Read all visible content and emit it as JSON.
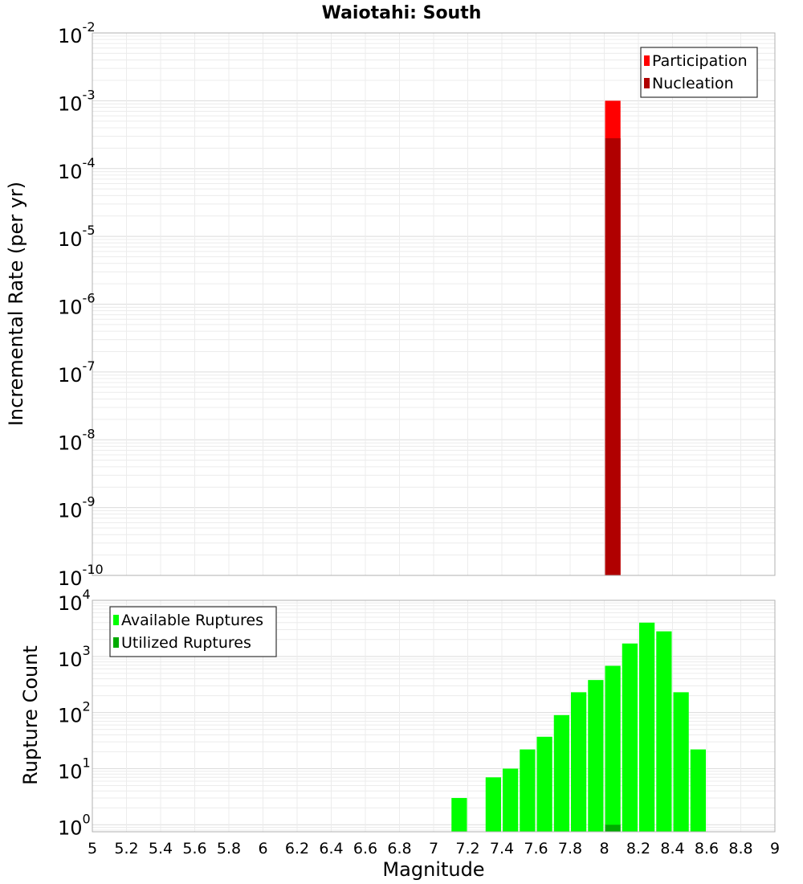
{
  "chart_data": [
    {
      "type": "bar",
      "title": "Waiotahi: South",
      "xlabel": "",
      "ylabel": "Incremental Rate (per yr)",
      "yscale": "log",
      "ylim": [
        1e-10,
        0.01
      ],
      "xlim": [
        5,
        9
      ],
      "bin_width": 0.1,
      "grid": true,
      "legend_placement": "top-right",
      "ytick_labels": [
        {
          "base": "10",
          "exp": "-10"
        },
        {
          "base": "10",
          "exp": "-9"
        },
        {
          "base": "10",
          "exp": "-8"
        },
        {
          "base": "10",
          "exp": "-7"
        },
        {
          "base": "10",
          "exp": "-6"
        },
        {
          "base": "10",
          "exp": "-5"
        },
        {
          "base": "10",
          "exp": "-4"
        },
        {
          "base": "10",
          "exp": "-3"
        },
        {
          "base": "10",
          "exp": "-2"
        }
      ],
      "series": [
        {
          "name": "Participation",
          "color": "#ff0000",
          "x": [
            8.05
          ],
          "values": [
            0.001
          ]
        },
        {
          "name": "Nucleation",
          "color": "#b00000",
          "x": [
            8.05
          ],
          "values": [
            0.00028
          ]
        }
      ]
    },
    {
      "type": "bar",
      "title": "",
      "xlabel": "Magnitude",
      "ylabel": "Rupture Count",
      "yscale": "log",
      "ylim": [
        0.75,
        10000
      ],
      "xlim": [
        5,
        9
      ],
      "bin_width": 0.1,
      "grid": true,
      "legend_placement": "top-left",
      "xtick_labels": [
        "5",
        "5.2",
        "5.4",
        "5.6",
        "5.8",
        "6",
        "6.2",
        "6.4",
        "6.6",
        "6.8",
        "7",
        "7.2",
        "7.4",
        "7.6",
        "7.8",
        "8",
        "8.2",
        "8.4",
        "8.6",
        "8.8",
        "9"
      ],
      "ytick_labels": [
        {
          "base": "10",
          "exp": "0"
        },
        {
          "base": "10",
          "exp": "1"
        },
        {
          "base": "10",
          "exp": "2"
        },
        {
          "base": "10",
          "exp": "3"
        },
        {
          "base": "10",
          "exp": "4"
        }
      ],
      "series": [
        {
          "name": "Available Ruptures",
          "color": "#00ff00",
          "x": [
            7.15,
            7.35,
            7.45,
            7.55,
            7.65,
            7.75,
            7.85,
            7.95,
            8.05,
            8.15,
            8.25,
            8.35,
            8.45,
            8.55
          ],
          "values": [
            3,
            7,
            10,
            22,
            37,
            90,
            230,
            380,
            680,
            1700,
            4000,
            2800,
            230,
            22
          ]
        },
        {
          "name": "Utilized Ruptures",
          "color": "#00aa00",
          "x": [
            8.05
          ],
          "values": [
            1
          ]
        }
      ]
    }
  ]
}
